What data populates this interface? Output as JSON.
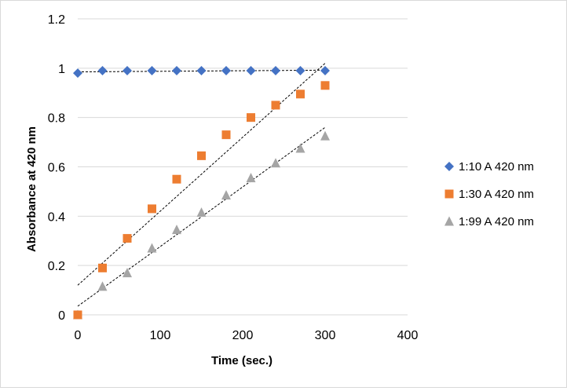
{
  "chart_data": {
    "type": "scatter",
    "title": "",
    "xlabel": "Time (sec.)",
    "ylabel": "Absorbance at 420 nm",
    "xlim": [
      0,
      400
    ],
    "ylim": [
      0,
      1.2
    ],
    "xticks": [
      0,
      100,
      200,
      300,
      400
    ],
    "yticks": [
      0,
      0.2,
      0.4,
      0.6,
      0.8,
      1,
      1.2
    ],
    "xtick_labels": [
      "0",
      "100",
      "200",
      "300",
      "400"
    ],
    "ytick_labels": [
      "0",
      "0.2",
      "0.4",
      "0.6",
      "0.8",
      "1",
      "1.2"
    ],
    "grid": "horizontal",
    "legend_position": "right",
    "series": [
      {
        "name": "1:10 A 420 nm",
        "marker": "diamond",
        "color": "#4472C4",
        "x": [
          0,
          30,
          60,
          90,
          120,
          150,
          180,
          210,
          240,
          270,
          300
        ],
        "y": [
          0.98,
          0.99,
          0.99,
          0.99,
          0.99,
          0.99,
          0.99,
          0.99,
          0.99,
          0.99,
          0.99
        ],
        "trendline": {
          "x": [
            0,
            300
          ],
          "y": [
            0.985,
            0.992
          ]
        }
      },
      {
        "name": "1:30 A 420 nm",
        "marker": "square",
        "color": "#ED7D31",
        "x": [
          0,
          30,
          60,
          90,
          120,
          150,
          180,
          210,
          240,
          270,
          300
        ],
        "y": [
          0.0,
          0.19,
          0.31,
          0.43,
          0.55,
          0.645,
          0.73,
          0.8,
          0.85,
          0.895,
          0.93
        ],
        "trendline": {
          "x": [
            0,
            300
          ],
          "y": [
            0.12,
            1.02
          ]
        }
      },
      {
        "name": "1:99 A 420 nm",
        "marker": "triangle",
        "color": "#A5A5A5",
        "x": [
          0,
          30,
          60,
          90,
          120,
          150,
          180,
          210,
          240,
          270,
          300
        ],
        "y": [
          0.0,
          0.115,
          0.17,
          0.27,
          0.345,
          0.415,
          0.485,
          0.555,
          0.615,
          0.675,
          0.725
        ],
        "trendline": {
          "x": [
            0,
            300
          ],
          "y": [
            0.035,
            0.76
          ]
        }
      }
    ]
  }
}
